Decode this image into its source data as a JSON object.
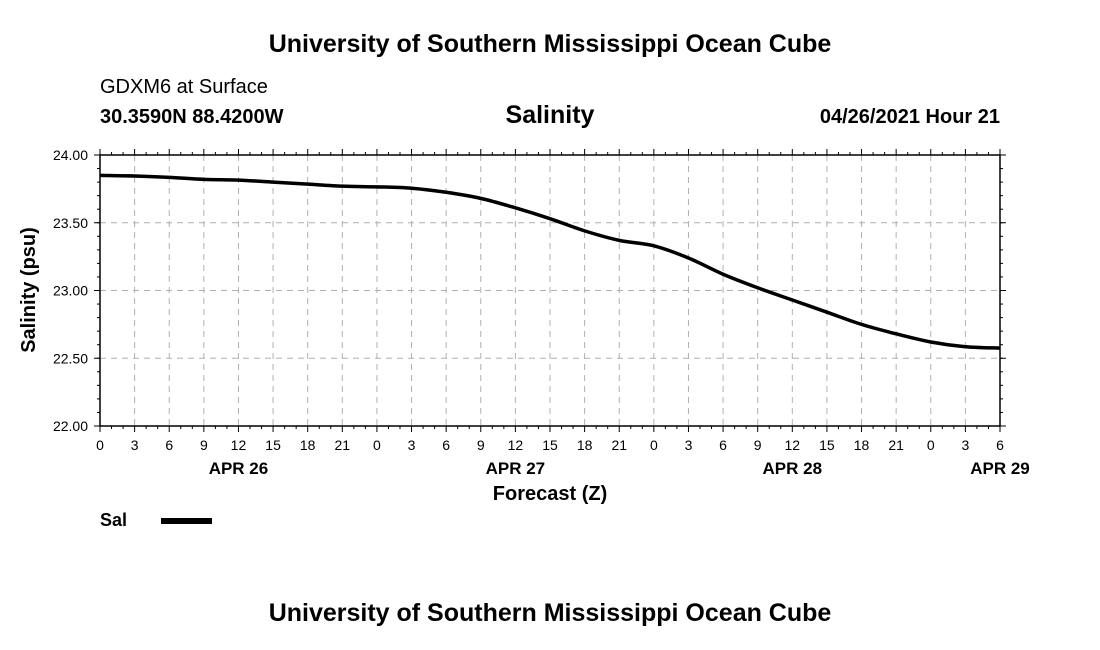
{
  "header": {
    "title": "University of Southern Mississippi Ocean Cube",
    "station": "GDXM6 at Surface",
    "coordinates": "30.3590N  88.4200W",
    "plot_title": "Salinity",
    "datetime": "04/26/2021 Hour 21"
  },
  "footer": {
    "title": "University of Southern Mississippi Ocean Cube"
  },
  "legend": {
    "label": "Sal"
  },
  "chart_data": {
    "type": "line",
    "title": "Salinity",
    "xlabel": "Forecast (Z)",
    "ylabel": "Salinity (psu)",
    "ylim": [
      22.0,
      24.0
    ],
    "xlim_hours": [
      0,
      78
    ],
    "yticks": [
      "22.00",
      "22.50",
      "23.00",
      "23.50",
      "24.00"
    ],
    "yminor_step": 0.1,
    "xticks": [
      "0",
      "3",
      "6",
      "9",
      "12",
      "15",
      "18",
      "21",
      "0",
      "3",
      "6",
      "9",
      "12",
      "15",
      "18",
      "21",
      "0",
      "3",
      "6",
      "9",
      "12",
      "15",
      "18",
      "21",
      "0",
      "3",
      "6"
    ],
    "day_labels": [
      {
        "label": "APR 26",
        "hour": 12
      },
      {
        "label": "APR 27",
        "hour": 36
      },
      {
        "label": "APR 28",
        "hour": 60
      },
      {
        "label": "APR 29",
        "hour": 78
      }
    ],
    "grid": true,
    "series": [
      {
        "name": "Sal",
        "color": "#000000",
        "x": [
          0,
          3,
          6,
          9,
          12,
          15,
          18,
          21,
          24,
          27,
          30,
          33,
          36,
          39,
          42,
          45,
          48,
          51,
          54,
          57,
          60,
          63,
          66,
          69,
          72,
          75,
          78
        ],
        "values": [
          23.85,
          23.845,
          23.835,
          23.82,
          23.815,
          23.8,
          23.785,
          23.77,
          23.765,
          23.755,
          23.725,
          23.68,
          23.61,
          23.53,
          23.44,
          23.37,
          23.33,
          23.24,
          23.12,
          23.02,
          22.93,
          22.84,
          22.75,
          22.68,
          22.62,
          22.585,
          22.575
        ]
      }
    ]
  }
}
